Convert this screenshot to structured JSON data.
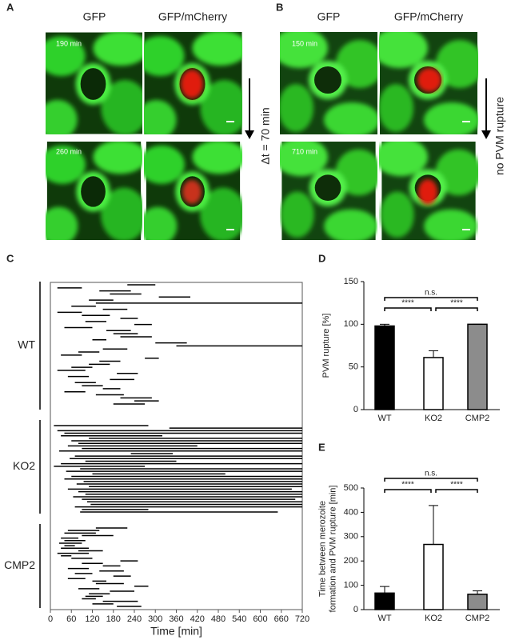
{
  "panels": {
    "A": {
      "label": "A",
      "headers": [
        "GFP",
        "GFP/mCherry"
      ],
      "timestamps": [
        "190 min",
        "260 min"
      ],
      "arrow_label": "Δt = 70 min"
    },
    "B": {
      "label": "B",
      "headers": [
        "GFP",
        "GFP/mCherry"
      ],
      "timestamps": [
        "150 min",
        "710 min"
      ],
      "arrow_label": "no PVM rupture"
    }
  },
  "chart_data": [
    {
      "type": "timeline",
      "panel_label": "C",
      "xlabel": "Time [min]",
      "xlim": [
        0,
        720
      ],
      "xticks": [
        0,
        60,
        120,
        180,
        240,
        300,
        360,
        420,
        480,
        540,
        600,
        660,
        720
      ],
      "color": "#000000",
      "groups": [
        {
          "name": "WT",
          "intervals": [
            [
              220,
              300
            ],
            [
              20,
              90
            ],
            [
              140,
              230
            ],
            [
              170,
              260
            ],
            [
              310,
              400
            ],
            [
              110,
              180
            ],
            [
              130,
              720
            ],
            [
              60,
              130
            ],
            [
              150,
              220
            ],
            [
              20,
              90
            ],
            [
              90,
              170
            ],
            [
              200,
              250
            ],
            [
              100,
              160
            ],
            [
              240,
              290
            ],
            [
              40,
              120
            ],
            [
              160,
              230
            ],
            [
              180,
              250
            ],
            [
              200,
              290
            ],
            [
              120,
              160
            ],
            [
              300,
              390
            ],
            [
              360,
              720
            ],
            [
              150,
              220
            ],
            [
              80,
              140
            ],
            [
              30,
              90
            ],
            [
              270,
              310
            ],
            [
              140,
              200
            ],
            [
              110,
              170
            ],
            [
              60,
              120
            ],
            [
              20,
              100
            ],
            [
              190,
              250
            ],
            [
              50,
              110
            ],
            [
              170,
              240
            ],
            [
              70,
              130
            ],
            [
              90,
              150
            ],
            [
              150,
              200
            ],
            [
              40,
              100
            ],
            [
              130,
              210
            ],
            [
              200,
              290
            ],
            [
              240,
              310
            ],
            [
              180,
              270
            ]
          ]
        },
        {
          "name": "KO2",
          "intervals": [
            [
              10,
              280
            ],
            [
              340,
              720
            ],
            [
              20,
              720
            ],
            [
              40,
              720
            ],
            [
              30,
              320
            ],
            [
              110,
              720
            ],
            [
              60,
              720
            ],
            [
              80,
              720
            ],
            [
              50,
              420
            ],
            [
              90,
              720
            ],
            [
              25,
              720
            ],
            [
              230,
              350
            ],
            [
              70,
              720
            ],
            [
              55,
              720
            ],
            [
              100,
              360
            ],
            [
              30,
              720
            ],
            [
              10,
              270
            ],
            [
              85,
              720
            ],
            [
              45,
              720
            ],
            [
              120,
              500
            ],
            [
              60,
              720
            ],
            [
              40,
              720
            ],
            [
              95,
              720
            ],
            [
              75,
              720
            ],
            [
              110,
              720
            ],
            [
              50,
              690
            ],
            [
              80,
              720
            ],
            [
              100,
              720
            ],
            [
              65,
              720
            ],
            [
              90,
              700
            ],
            [
              105,
              720
            ],
            [
              115,
              720
            ],
            [
              70,
              720
            ],
            [
              90,
              280
            ],
            [
              85,
              650
            ]
          ]
        },
        {
          "name": "CMP2",
          "intervals": [
            [
              130,
              220
            ],
            [
              50,
              140
            ],
            [
              40,
              130
            ],
            [
              90,
              180
            ],
            [
              30,
              80
            ],
            [
              40,
              100
            ],
            [
              25,
              90
            ],
            [
              40,
              70
            ],
            [
              30,
              110
            ],
            [
              80,
              150
            ],
            [
              20,
              110
            ],
            [
              30,
              60
            ],
            [
              60,
              120
            ],
            [
              200,
              250
            ],
            [
              90,
              150
            ],
            [
              150,
              200
            ],
            [
              50,
              110
            ],
            [
              140,
              210
            ],
            [
              70,
              120
            ],
            [
              180,
              230
            ],
            [
              50,
              100
            ],
            [
              120,
              160
            ],
            [
              130,
              210
            ],
            [
              240,
              280
            ],
            [
              80,
              140
            ],
            [
              170,
              240
            ],
            [
              110,
              170
            ],
            [
              100,
              150
            ],
            [
              90,
              130
            ],
            [
              150,
              250
            ],
            [
              120,
              180
            ],
            [
              190,
              260
            ]
          ]
        }
      ]
    },
    {
      "type": "bar",
      "panel_label": "D",
      "ylabel": [
        "PVM rupture [%]"
      ],
      "categories": [
        "WT",
        "KO2",
        "CMP2"
      ],
      "values": [
        98,
        61,
        100
      ],
      "errors": [
        2,
        8,
        0
      ],
      "colors": [
        "#000000",
        "#ffffff",
        "#8c8c8c"
      ],
      "ylim": [
        0,
        150
      ],
      "yticks": [
        0,
        50,
        100,
        150
      ],
      "annotations": [
        "n.s.",
        "****",
        "****"
      ]
    },
    {
      "type": "bar",
      "panel_label": "E",
      "ylabel": [
        "Time between merozoite",
        "formation and PVM rupture [min]"
      ],
      "categories": [
        "WT",
        "KO2",
        "CMP2"
      ],
      "values": [
        68,
        268,
        63
      ],
      "errors": [
        27,
        160,
        14
      ],
      "colors": [
        "#000000",
        "#ffffff",
        "#8c8c8c"
      ],
      "ylim": [
        0,
        500
      ],
      "yticks": [
        0,
        100,
        200,
        300,
        400,
        500
      ],
      "annotations": [
        "n.s.",
        "****",
        "****"
      ]
    }
  ]
}
